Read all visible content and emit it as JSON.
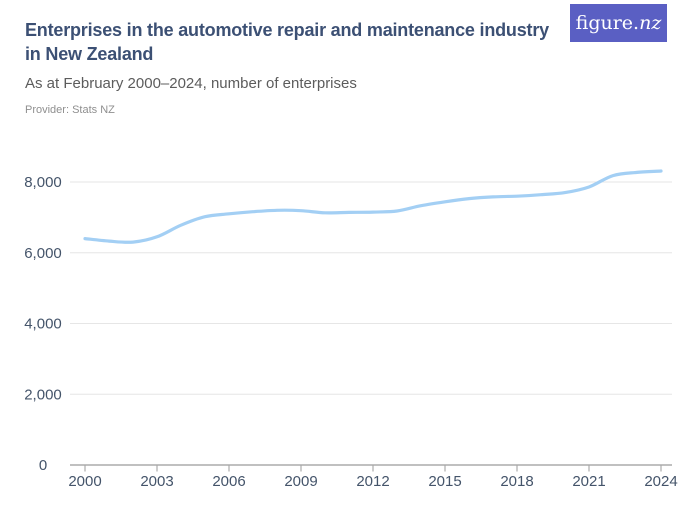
{
  "header": {
    "title": "Enterprises in the automotive repair and maintenance industry in New Zealand",
    "subtitle": "As at February 2000–2024, number of enterprises",
    "provider": "Provider: Stats NZ"
  },
  "brand": {
    "logo_prefix": "figure.",
    "logo_suffix": "nz",
    "background_color": "#5a5fc3",
    "text_color": "#ffffff"
  },
  "chart_data": {
    "type": "line",
    "title": "Enterprises in the automotive repair and maintenance industry in New Zealand",
    "subtitle": "As at February 2000-2024, number of enterprises",
    "xlabel": "",
    "ylabel": "",
    "x": [
      2000,
      2001,
      2002,
      2003,
      2004,
      2005,
      2006,
      2007,
      2008,
      2009,
      2010,
      2011,
      2012,
      2013,
      2014,
      2015,
      2016,
      2017,
      2018,
      2019,
      2020,
      2021,
      2022,
      2023,
      2024
    ],
    "series": [
      {
        "name": "Number of enterprises",
        "values": [
          6400,
          6330,
          6300,
          6450,
          6780,
          7020,
          7100,
          7160,
          7200,
          7190,
          7130,
          7140,
          7150,
          7180,
          7330,
          7440,
          7530,
          7580,
          7600,
          7640,
          7700,
          7860,
          8180,
          8270,
          8310
        ]
      }
    ],
    "xlim": [
      2000,
      2024
    ],
    "ylim": [
      0,
      8600
    ],
    "xtick_values": [
      2000,
      2003,
      2006,
      2009,
      2012,
      2015,
      2018,
      2021,
      2024
    ],
    "xtick_labels": [
      "2000",
      "2003",
      "2006",
      "2009",
      "2012",
      "2015",
      "2018",
      "2021",
      "2024"
    ],
    "ytick_values": [
      0,
      2000,
      4000,
      6000,
      8000
    ],
    "ytick_labels": [
      "0",
      "2,000",
      "4,000",
      "6,000",
      "8,000"
    ],
    "grid": "horizontal",
    "legend": "none",
    "line_color": "#a3cff4",
    "gridline_color": "#e6e6e6",
    "axis_color": "#9b9b9b",
    "axis_label_color": "#44546a"
  }
}
